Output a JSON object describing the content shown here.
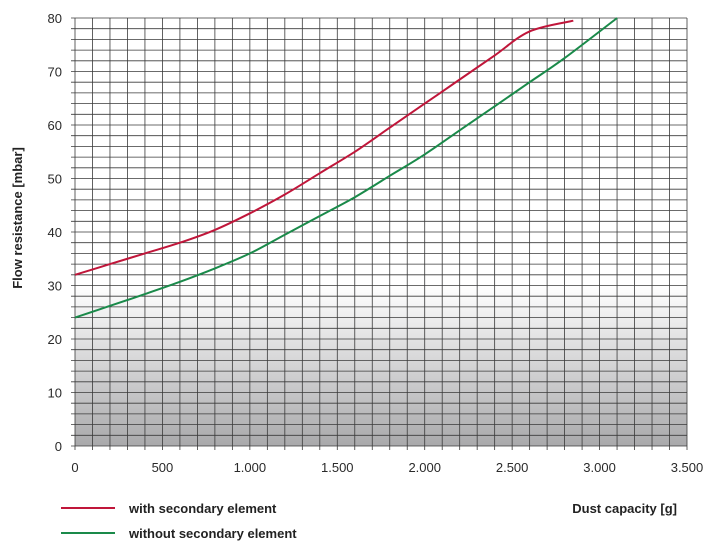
{
  "chart_data": {
    "type": "line",
    "title": "",
    "xlabel": "Dust capacity [g]",
    "ylabel": "Flow resistance [mbar]",
    "xlim": [
      0,
      3500
    ],
    "ylim": [
      0,
      80
    ],
    "x_ticks": [
      0,
      500,
      1000,
      1500,
      2000,
      2500,
      3000,
      3500
    ],
    "x_tick_labels": [
      "0",
      "500",
      "1.000",
      "1.500",
      "2.000",
      "2.500",
      "3.000",
      "3.500"
    ],
    "y_ticks": [
      0,
      10,
      20,
      30,
      40,
      50,
      60,
      70,
      80
    ],
    "y_tick_labels": [
      "0",
      "10",
      "20",
      "30",
      "40",
      "50",
      "60",
      "70",
      "80"
    ],
    "grid": true,
    "legend_position": "bottom-left",
    "series": [
      {
        "name": "with secondary element",
        "color": "#c0163a",
        "x": [
          0,
          200,
          400,
          600,
          800,
          1000,
          1200,
          1400,
          1600,
          1800,
          2000,
          2200,
          2400,
          2600,
          2850
        ],
        "y": [
          32,
          34,
          36,
          38,
          40.4,
          43.5,
          47,
          51,
          55,
          59.5,
          64,
          68.5,
          73,
          77.5,
          79.5
        ]
      },
      {
        "name": "without secondary element",
        "color": "#1a8a4a",
        "x": [
          0,
          200,
          400,
          600,
          800,
          1000,
          1200,
          1400,
          1600,
          1800,
          2000,
          2200,
          2400,
          2600,
          2800,
          3100
        ],
        "y": [
          24,
          26.2,
          28.4,
          30.7,
          33.2,
          36,
          39.5,
          43,
          46.5,
          50.5,
          54.5,
          59,
          63.5,
          68,
          72.5,
          80
        ]
      }
    ]
  }
}
